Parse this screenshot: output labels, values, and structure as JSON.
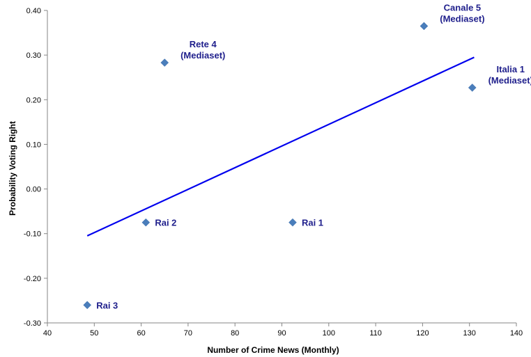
{
  "chart_data": {
    "type": "scatter",
    "xlabel": "Number of Crime News (Monthly)",
    "ylabel": "Probability Voting Right",
    "xlim": [
      40,
      140
    ],
    "ylim": [
      -0.3,
      0.4
    ],
    "xticks": [
      40,
      50,
      60,
      70,
      80,
      90,
      100,
      110,
      120,
      130,
      140
    ],
    "yticks": [
      {
        "value": 0.4,
        "label": "0.40"
      },
      {
        "value": 0.3,
        "label": "0.30"
      },
      {
        "value": 0.2,
        "label": "0.20"
      },
      {
        "value": 0.1,
        "label": "0.10"
      },
      {
        "value": 0.0,
        "label": "0.00"
      },
      {
        "value": -0.1,
        "label": "-0.10"
      },
      {
        "value": -0.2,
        "label": "-0.20"
      },
      {
        "value": -0.3,
        "label": "-0.30"
      }
    ],
    "grid": false,
    "points": [
      {
        "label": [
          "Rai 3"
        ],
        "x": 48.5,
        "y": -0.26,
        "label_pos": "right"
      },
      {
        "label": [
          "Rai 2"
        ],
        "x": 61,
        "y": -0.075,
        "label_pos": "right"
      },
      {
        "label": [
          "Rai 1"
        ],
        "x": 92.3,
        "y": -0.075,
        "label_pos": "right"
      },
      {
        "label": [
          "Rete 4",
          "(Mediaset)"
        ],
        "x": 65,
        "y": 0.283,
        "label_pos": "above-right"
      },
      {
        "label": [
          "Canale  5",
          "(Mediaset)"
        ],
        "x": 120.3,
        "y": 0.365,
        "label_pos": "above-right"
      },
      {
        "label": [
          "Italia 1",
          "(Mediaset)"
        ],
        "x": 130.6,
        "y": 0.227,
        "label_pos": "above-right"
      }
    ],
    "trendline": {
      "x": [
        48.5,
        131
      ],
      "y": [
        -0.105,
        0.295
      ]
    },
    "colors": {
      "marker": "#4a7ebb",
      "trendline": "#0000ee",
      "labels": "#1f1f8c",
      "axis": "#868686"
    }
  }
}
